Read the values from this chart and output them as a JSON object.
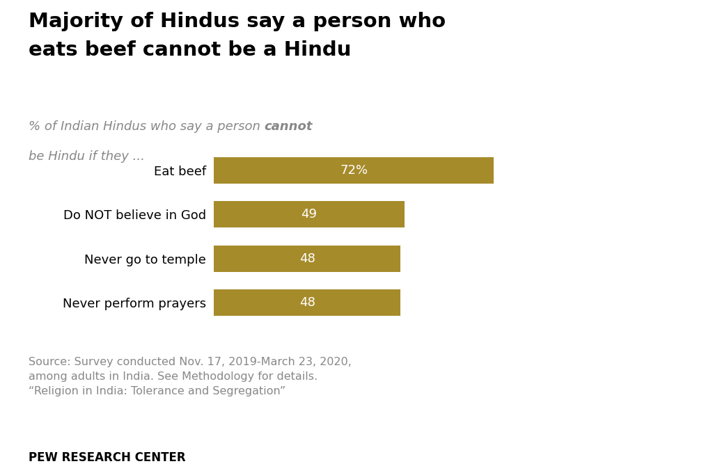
{
  "title_line1": "Majority of Hindus say a person who",
  "title_line2": "eats beef cannot be a Hindu",
  "subtitle_normal": "% of Indian Hindus who say a person ",
  "subtitle_bold": "cannot",
  "subtitle_end": "be Hindu if they ...",
  "categories": [
    "Eat beef",
    "Do NOT believe in God",
    "Never go to temple",
    "Never perform prayers"
  ],
  "values": [
    72,
    49,
    48,
    48
  ],
  "labels": [
    "72%",
    "49",
    "48",
    "48"
  ],
  "bar_color": "#A68B2B",
  "background_color": "#FFFFFF",
  "source_text": "Source: Survey conducted Nov. 17, 2019-March 23, 2020,\namong adults in India. See Methodology for details.\n“Religion in India: Tolerance and Segregation”",
  "footer_text": "PEW RESEARCH CENTER",
  "title_fontsize": 21,
  "subtitle_fontsize": 13,
  "bar_label_fontsize": 13,
  "category_fontsize": 13,
  "source_fontsize": 11.5,
  "footer_fontsize": 12,
  "xlim": [
    0,
    100
  ],
  "title_color": "#000000",
  "subtitle_color": "#888888",
  "bar_label_color": "#FFFFFF",
  "category_color": "#000000",
  "source_color": "#888888",
  "footer_color": "#000000"
}
